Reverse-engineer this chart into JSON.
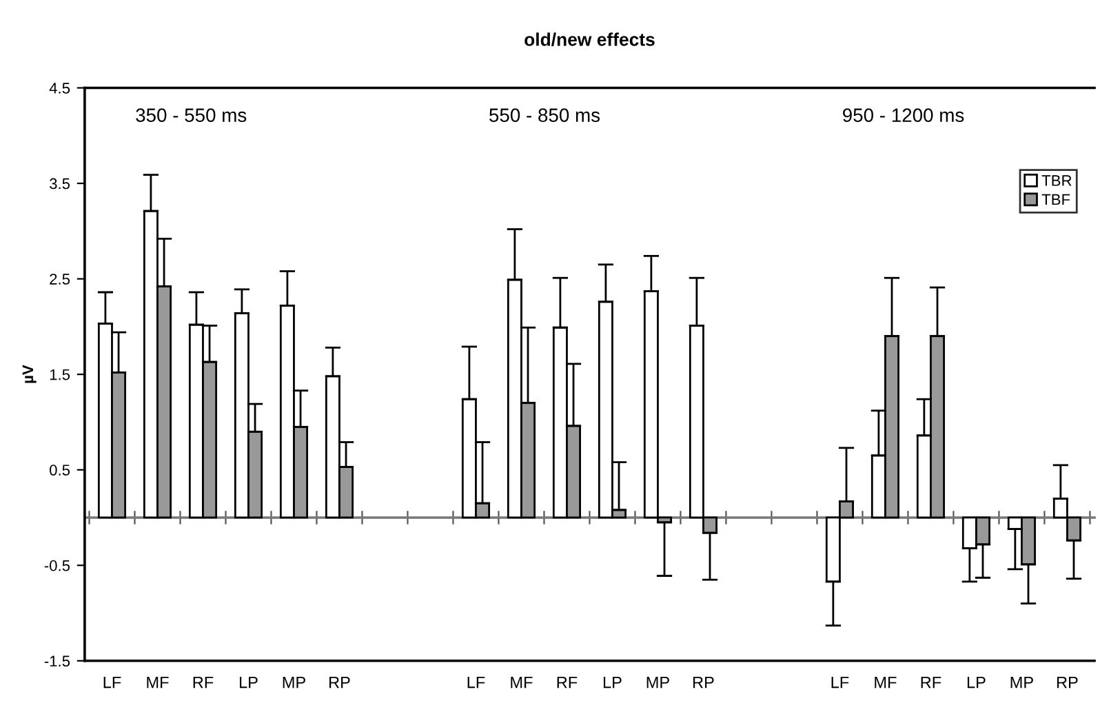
{
  "chart_data": {
    "type": "bar",
    "title": "old/new effects",
    "ylabel": "µV",
    "annotations": [
      "350 - 550 ms",
      "550 - 850 ms",
      "950 - 1200 ms"
    ],
    "categories": [
      "LF",
      "MF",
      "RF",
      "LP",
      "MP",
      "RP",
      null,
      null,
      "LF",
      "MF",
      "RF",
      "LP",
      "MP",
      "RP",
      null,
      null,
      "LF",
      "MF",
      "RF",
      "LP",
      "MP",
      "RP"
    ],
    "series": [
      {
        "name": "TBR",
        "color": "#ffffff",
        "values": [
          2.03,
          3.21,
          2.02,
          2.14,
          2.22,
          1.48,
          null,
          null,
          1.24,
          2.49,
          1.99,
          2.26,
          2.37,
          2.01,
          null,
          null,
          -0.67,
          0.65,
          0.86,
          -0.32,
          -0.12,
          0.2
        ],
        "errors": [
          [
            2.03,
            2.36
          ],
          [
            3.21,
            3.59
          ],
          [
            2.02,
            2.36
          ],
          [
            2.14,
            2.39
          ],
          [
            2.22,
            2.58
          ],
          [
            1.48,
            1.78
          ],
          null,
          null,
          [
            1.24,
            1.79
          ],
          [
            2.49,
            3.02
          ],
          [
            1.99,
            2.51
          ],
          [
            2.26,
            2.65
          ],
          [
            2.37,
            2.74
          ],
          [
            2.01,
            2.51
          ],
          null,
          null,
          [
            -1.13,
            -0.67
          ],
          [
            0.65,
            1.12
          ],
          [
            0.86,
            1.24
          ],
          [
            -0.67,
            -0.32
          ],
          [
            -0.54,
            -0.12
          ],
          [
            0.2,
            0.55
          ]
        ]
      },
      {
        "name": "TBF",
        "color": "#999999",
        "values": [
          1.52,
          2.42,
          1.63,
          0.9,
          0.95,
          0.53,
          null,
          null,
          0.15,
          1.2,
          0.96,
          0.08,
          -0.05,
          -0.16,
          null,
          null,
          0.17,
          1.9,
          1.9,
          -0.28,
          -0.49,
          -0.24
        ],
        "errors": [
          [
            1.52,
            1.94
          ],
          [
            2.42,
            2.92
          ],
          [
            1.63,
            2.01
          ],
          [
            0.9,
            1.19
          ],
          [
            0.95,
            1.33
          ],
          [
            0.53,
            0.79
          ],
          null,
          null,
          [
            0.15,
            0.79
          ],
          [
            1.2,
            1.99
          ],
          [
            0.96,
            1.61
          ],
          [
            0.08,
            0.58
          ],
          [
            -0.61,
            -0.05
          ],
          [
            -0.65,
            -0.16
          ],
          null,
          null,
          [
            0.17,
            0.73
          ],
          [
            1.9,
            2.51
          ],
          [
            1.9,
            2.41
          ],
          [
            -0.63,
            -0.28
          ],
          [
            -0.9,
            -0.49
          ],
          [
            -0.64,
            -0.24
          ]
        ]
      }
    ],
    "ylim": [
      -1.5,
      4.5
    ],
    "yticks": [
      -1.5,
      -0.5,
      0.5,
      1.5,
      2.5,
      3.5,
      4.5
    ],
    "grid": false,
    "legend": "top right"
  }
}
